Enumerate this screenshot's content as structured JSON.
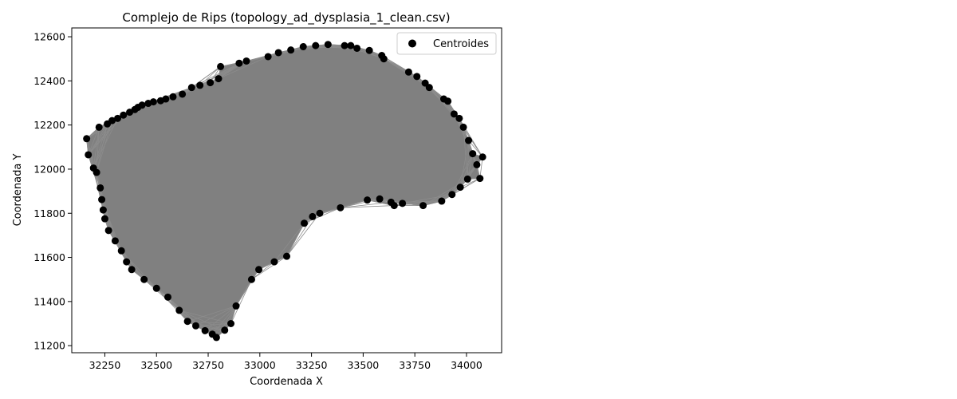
{
  "chart_data": {
    "type": "scatter",
    "title": "Complejo de Rips (topology_ad_dysplasia_1_clean.csv)",
    "xlabel": "Coordenada X",
    "ylabel": "Coordenada Y",
    "xlim": [
      32090,
      34170
    ],
    "ylim": [
      11168,
      12640
    ],
    "xticks": [
      32250,
      32500,
      32750,
      33000,
      33250,
      33500,
      33750,
      34000
    ],
    "yticks": [
      11200,
      11400,
      11600,
      11800,
      12000,
      12200,
      12400,
      12600
    ],
    "grid": false,
    "legend": {
      "position": "top-right",
      "entries": [
        "Centroides"
      ]
    },
    "colors": {
      "points": "#000000",
      "complex_fill": "#808080",
      "complex_edges": "#8c8c8c"
    },
    "series": [
      {
        "name": "Centroides",
        "marker": "circle",
        "points": [
          [
            32162,
            12138
          ],
          [
            32170,
            12065
          ],
          [
            32195,
            12005
          ],
          [
            32210,
            11985
          ],
          [
            32222,
            12190
          ],
          [
            32228,
            11915
          ],
          [
            32235,
            11862
          ],
          [
            32242,
            11815
          ],
          [
            32250,
            11775
          ],
          [
            32262,
            12205
          ],
          [
            32268,
            11722
          ],
          [
            32285,
            12220
          ],
          [
            32300,
            11675
          ],
          [
            32312,
            12230
          ],
          [
            32330,
            11630
          ],
          [
            32340,
            12245
          ],
          [
            32355,
            11580
          ],
          [
            32370,
            12258
          ],
          [
            32380,
            11545
          ],
          [
            32395,
            12270
          ],
          [
            32410,
            12280
          ],
          [
            32430,
            12290
          ],
          [
            32440,
            11500
          ],
          [
            32460,
            12298
          ],
          [
            32485,
            12305
          ],
          [
            32500,
            11460
          ],
          [
            32520,
            12310
          ],
          [
            32545,
            12318
          ],
          [
            32555,
            11420
          ],
          [
            32580,
            12328
          ],
          [
            32610,
            11360
          ],
          [
            32625,
            12340
          ],
          [
            32650,
            11310
          ],
          [
            32670,
            12370
          ],
          [
            32690,
            11290
          ],
          [
            32710,
            12380
          ],
          [
            32735,
            11268
          ],
          [
            32760,
            12392
          ],
          [
            32770,
            11252
          ],
          [
            32790,
            11237
          ],
          [
            32800,
            12410
          ],
          [
            32810,
            12465
          ],
          [
            32830,
            11270
          ],
          [
            32860,
            11300
          ],
          [
            32885,
            11380
          ],
          [
            32900,
            12480
          ],
          [
            32935,
            12490
          ],
          [
            32960,
            11500
          ],
          [
            32995,
            11545
          ],
          [
            33040,
            12510
          ],
          [
            33070,
            11580
          ],
          [
            33090,
            12528
          ],
          [
            33130,
            11605
          ],
          [
            33150,
            12540
          ],
          [
            33210,
            12555
          ],
          [
            33215,
            11755
          ],
          [
            33255,
            11785
          ],
          [
            33270,
            12560
          ],
          [
            33290,
            11800
          ],
          [
            33330,
            12565
          ],
          [
            33390,
            11825
          ],
          [
            33410,
            12560
          ],
          [
            33440,
            12560
          ],
          [
            33470,
            12548
          ],
          [
            33520,
            11860
          ],
          [
            33530,
            12538
          ],
          [
            33580,
            11865
          ],
          [
            33590,
            12515
          ],
          [
            33600,
            12500
          ],
          [
            33635,
            11850
          ],
          [
            33650,
            11835
          ],
          [
            33690,
            11845
          ],
          [
            33720,
            12440
          ],
          [
            33760,
            12420
          ],
          [
            33790,
            11835
          ],
          [
            33800,
            12390
          ],
          [
            33820,
            12370
          ],
          [
            33880,
            11855
          ],
          [
            33890,
            12318
          ],
          [
            33910,
            12308
          ],
          [
            33930,
            11885
          ],
          [
            33940,
            12250
          ],
          [
            33965,
            12230
          ],
          [
            33970,
            11918
          ],
          [
            33985,
            12190
          ],
          [
            34005,
            11955
          ],
          [
            34010,
            12130
          ],
          [
            34030,
            12070
          ],
          [
            34050,
            12020
          ],
          [
            34065,
            11958
          ],
          [
            34078,
            12055
          ]
        ]
      }
    ]
  }
}
